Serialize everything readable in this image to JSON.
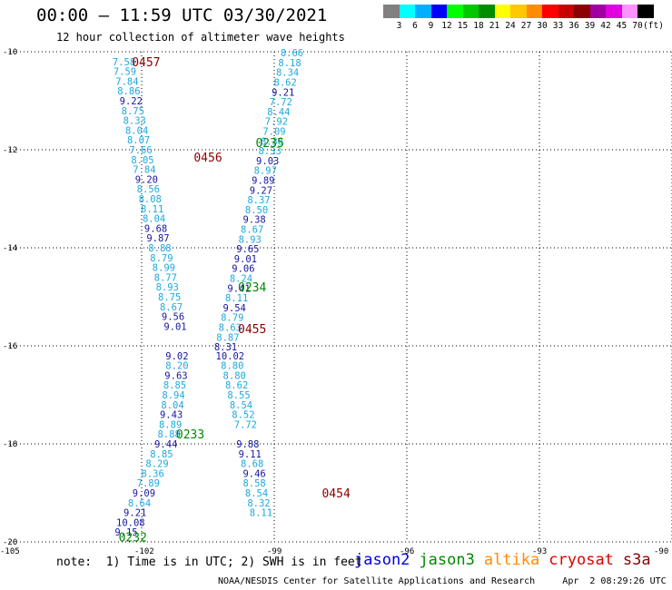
{
  "header": {
    "title": "00:00 – 11:59 UTC 03/30/2021",
    "subtitle": "12 hour collection of altimeter wave heights"
  },
  "colorbar": {
    "colors": [
      "#808080",
      "#00ffff",
      "#00b0ff",
      "#0000ff",
      "#00ff00",
      "#00c800",
      "#008c00",
      "#ffff00",
      "#ffc800",
      "#ff8c00",
      "#ff0000",
      "#c80000",
      "#8c0000",
      "#a000a0",
      "#e000e0",
      "#ff90ff",
      "#000000"
    ],
    "labels": [
      "3",
      "6",
      "9",
      "12",
      "15",
      "18",
      "21",
      "24",
      "27",
      "30",
      "33",
      "36",
      "39",
      "42",
      "45",
      "70",
      "(ft)"
    ]
  },
  "footer": {
    "note": "note:  1) Time is in UTC; 2) SWH is in feet",
    "credit": "NOAA/NESDIS Center for Satellite Applications and Research     Apr  2 08:29:26 UTC 2021"
  },
  "legend": {
    "items": [
      {
        "name": "jason2",
        "color": "#0000dd"
      },
      {
        "name": "jason3",
        "color": "#008800"
      },
      {
        "name": "altika",
        "color": "#ff8c00"
      },
      {
        "name": "cryosat",
        "color": "#dd0000"
      },
      {
        "name": "s3a",
        "color": "#880000"
      }
    ]
  },
  "chart_data": {
    "type": "scatter",
    "title": "12 hour collection of altimeter wave heights",
    "xlim": [
      -105,
      -90
    ],
    "ylim": [
      -20,
      -10
    ],
    "x_ticks": [
      -105,
      -102,
      -99,
      -96,
      -93,
      -90
    ],
    "x_tick_labels": [
      "-105",
      "-102",
      "-99",
      "-96",
      "-93",
      "-90"
    ],
    "y_ticks": [
      -10,
      -12,
      -14,
      -16,
      -18,
      -20
    ],
    "y_tick_labels": [
      "-10",
      "-12",
      "-14",
      "-16",
      "-18",
      "-20"
    ],
    "grid": true,
    "label_colors": {
      "light": "#1ea8e0",
      "dark": "#1616a0"
    },
    "pass_colors": {
      "jason3": "#008800",
      "s3a": "#880000"
    },
    "pass_labels": [
      {
        "label": "0457",
        "satellite": "s3a",
        "x": -101.9,
        "y": -10.2
      },
      {
        "label": "0456",
        "satellite": "s3a",
        "x": -100.5,
        "y": -12.15
      },
      {
        "label": "0455",
        "satellite": "s3a",
        "x": -99.5,
        "y": -15.65
      },
      {
        "label": "0454",
        "satellite": "s3a",
        "x": -97.6,
        "y": -19.0
      },
      {
        "label": "0235",
        "satellite": "jason3",
        "x": -99.1,
        "y": -11.85
      },
      {
        "label": "0234",
        "satellite": "jason3",
        "x": -99.5,
        "y": -14.8
      },
      {
        "label": "0233",
        "satellite": "jason3",
        "x": -100.9,
        "y": -17.8
      },
      {
        "label": "0232",
        "satellite": "jason3",
        "x": -102.2,
        "y": -19.9
      }
    ],
    "series": [
      {
        "name": "s3a",
        "points": [
          {
            "x": -102.4,
            "y": -10.2,
            "v": "7.58",
            "c": "light"
          },
          {
            "x": -102.38,
            "y": -10.4,
            "v": "7.59",
            "c": "light"
          },
          {
            "x": -102.33,
            "y": -10.6,
            "v": "7.84",
            "c": "light"
          },
          {
            "x": -102.29,
            "y": -10.8,
            "v": "8.86",
            "c": "light"
          },
          {
            "x": -102.24,
            "y": -11.0,
            "v": "9.22",
            "c": "dark"
          },
          {
            "x": -102.2,
            "y": -11.2,
            "v": "8.75",
            "c": "light"
          },
          {
            "x": -102.16,
            "y": -11.4,
            "v": "8.33",
            "c": "light"
          },
          {
            "x": -102.11,
            "y": -11.6,
            "v": "8.04",
            "c": "light"
          },
          {
            "x": -102.07,
            "y": -11.8,
            "v": "8.07",
            "c": "light"
          },
          {
            "x": -102.02,
            "y": -12.0,
            "v": "7.66",
            "c": "light"
          },
          {
            "x": -101.98,
            "y": -12.2,
            "v": "8.05",
            "c": "light"
          },
          {
            "x": -101.94,
            "y": -12.4,
            "v": "7.84",
            "c": "light"
          },
          {
            "x": -101.89,
            "y": -12.6,
            "v": "9.20",
            "c": "dark"
          },
          {
            "x": -101.85,
            "y": -12.8,
            "v": "8.56",
            "c": "light"
          },
          {
            "x": -101.81,
            "y": -13.0,
            "v": "8.08",
            "c": "light"
          },
          {
            "x": -101.76,
            "y": -13.2,
            "v": "8.11",
            "c": "light"
          },
          {
            "x": -101.72,
            "y": -13.4,
            "v": "8.04",
            "c": "light"
          },
          {
            "x": -101.68,
            "y": -13.6,
            "v": "9.68",
            "c": "dark"
          },
          {
            "x": -101.63,
            "y": -13.8,
            "v": "9.87",
            "c": "dark"
          },
          {
            "x": -101.59,
            "y": -14.0,
            "v": "8.88",
            "c": "light"
          },
          {
            "x": -101.55,
            "y": -14.2,
            "v": "8.79",
            "c": "light"
          },
          {
            "x": -101.5,
            "y": -14.4,
            "v": "8.99",
            "c": "light"
          },
          {
            "x": -101.46,
            "y": -14.6,
            "v": "8.77",
            "c": "light"
          },
          {
            "x": -101.42,
            "y": -14.8,
            "v": "8.93",
            "c": "light"
          },
          {
            "x": -101.37,
            "y": -15.0,
            "v": "8.75",
            "c": "light"
          },
          {
            "x": -101.33,
            "y": -15.2,
            "v": "8.67",
            "c": "light"
          },
          {
            "x": -101.29,
            "y": -15.4,
            "v": "9.56",
            "c": "dark"
          },
          {
            "x": -101.24,
            "y": -15.6,
            "v": "9.01",
            "c": "dark"
          }
        ]
      },
      {
        "name": "jason3",
        "points": [
          {
            "x": -98.6,
            "y": -10.02,
            "v": "8.66",
            "c": "light"
          },
          {
            "x": -98.65,
            "y": -10.22,
            "v": "8.18",
            "c": "light"
          },
          {
            "x": -98.7,
            "y": -10.42,
            "v": "8.34",
            "c": "light"
          },
          {
            "x": -98.75,
            "y": -10.62,
            "v": "8.62",
            "c": "light"
          },
          {
            "x": -98.8,
            "y": -10.82,
            "v": "9.21",
            "c": "dark"
          },
          {
            "x": -98.85,
            "y": -11.02,
            "v": "7.72",
            "c": "light"
          },
          {
            "x": -98.9,
            "y": -11.22,
            "v": "8.44",
            "c": "light"
          },
          {
            "x": -98.95,
            "y": -11.42,
            "v": "7.92",
            "c": "light"
          },
          {
            "x": -99.0,
            "y": -11.62,
            "v": "7.09",
            "c": "light"
          },
          {
            "x": -99.05,
            "y": -11.82,
            "v": "8.38",
            "c": "light"
          },
          {
            "x": -99.1,
            "y": -12.02,
            "v": "8.33",
            "c": "light"
          },
          {
            "x": -99.15,
            "y": -12.22,
            "v": "9.03",
            "c": "dark"
          },
          {
            "x": -99.2,
            "y": -12.42,
            "v": "8.97",
            "c": "light"
          },
          {
            "x": -99.25,
            "y": -12.62,
            "v": "9.89",
            "c": "dark"
          },
          {
            "x": -99.3,
            "y": -12.82,
            "v": "9.27",
            "c": "dark"
          },
          {
            "x": -99.35,
            "y": -13.02,
            "v": "8.37",
            "c": "light"
          },
          {
            "x": -99.4,
            "y": -13.22,
            "v": "8.50",
            "c": "light"
          },
          {
            "x": -99.45,
            "y": -13.42,
            "v": "9.38",
            "c": "dark"
          },
          {
            "x": -99.5,
            "y": -13.62,
            "v": "8.67",
            "c": "light"
          },
          {
            "x": -99.55,
            "y": -13.82,
            "v": "8.93",
            "c": "light"
          },
          {
            "x": -99.6,
            "y": -14.02,
            "v": "9.65",
            "c": "dark"
          },
          {
            "x": -99.65,
            "y": -14.22,
            "v": "9.01",
            "c": "dark"
          },
          {
            "x": -99.7,
            "y": -14.42,
            "v": "9.06",
            "c": "dark"
          },
          {
            "x": -99.75,
            "y": -14.62,
            "v": "8.24",
            "c": "light"
          },
          {
            "x": -99.8,
            "y": -14.82,
            "v": "9.41",
            "c": "dark"
          },
          {
            "x": -99.85,
            "y": -15.02,
            "v": "8.11",
            "c": "light"
          },
          {
            "x": -99.9,
            "y": -15.22,
            "v": "9.54",
            "c": "dark"
          },
          {
            "x": -99.95,
            "y": -15.42,
            "v": "8.79",
            "c": "light"
          },
          {
            "x": -100.0,
            "y": -15.62,
            "v": "8.63",
            "c": "light"
          },
          {
            "x": -100.05,
            "y": -15.82,
            "v": "8.87",
            "c": "light"
          },
          {
            "x": -100.1,
            "y": -16.02,
            "v": "8.31",
            "c": "dark"
          }
        ]
      },
      {
        "name": "s3a",
        "points": [
          {
            "x": -101.2,
            "y": -16.2,
            "v": "9.02",
            "c": "dark"
          },
          {
            "x": -101.2,
            "y": -16.4,
            "v": "8.20",
            "c": "light"
          },
          {
            "x": -101.22,
            "y": -16.6,
            "v": "9.63",
            "c": "dark"
          },
          {
            "x": -101.25,
            "y": -16.8,
            "v": "8.85",
            "c": "light"
          },
          {
            "x": -101.28,
            "y": -17.0,
            "v": "8.94",
            "c": "light"
          },
          {
            "x": -101.3,
            "y": -17.2,
            "v": "8.04",
            "c": "light"
          },
          {
            "x": -101.33,
            "y": -17.4,
            "v": "9.43",
            "c": "dark"
          },
          {
            "x": -101.35,
            "y": -17.6,
            "v": "8.89",
            "c": "light"
          },
          {
            "x": -101.38,
            "y": -17.8,
            "v": "8.88",
            "c": "light"
          },
          {
            "x": -101.45,
            "y": -18.0,
            "v": "9.44",
            "c": "dark"
          },
          {
            "x": -101.55,
            "y": -18.2,
            "v": "8.85",
            "c": "light"
          },
          {
            "x": -101.65,
            "y": -18.4,
            "v": "8.29",
            "c": "light"
          },
          {
            "x": -101.75,
            "y": -18.6,
            "v": "8.36",
            "c": "light"
          },
          {
            "x": -101.85,
            "y": -18.8,
            "v": "7.89",
            "c": "light"
          },
          {
            "x": -101.95,
            "y": -19.0,
            "v": "9.09",
            "c": "dark"
          },
          {
            "x": -102.05,
            "y": -19.2,
            "v": "8.64",
            "c": "light"
          },
          {
            "x": -102.15,
            "y": -19.4,
            "v": "9.21",
            "c": "dark"
          },
          {
            "x": -102.25,
            "y": -19.6,
            "v": "10.08",
            "c": "dark"
          },
          {
            "x": -102.35,
            "y": -19.8,
            "v": "9.15",
            "c": "dark"
          }
        ]
      },
      {
        "name": "jason3",
        "points": [
          {
            "x": -100.0,
            "y": -16.2,
            "v": "10.02",
            "c": "dark"
          },
          {
            "x": -99.95,
            "y": -16.4,
            "v": "8.80",
            "c": "light"
          },
          {
            "x": -99.9,
            "y": -16.6,
            "v": "8.80",
            "c": "light"
          },
          {
            "x": -99.85,
            "y": -16.8,
            "v": "8.62",
            "c": "light"
          },
          {
            "x": -99.8,
            "y": -17.0,
            "v": "8.55",
            "c": "light"
          },
          {
            "x": -99.75,
            "y": -17.2,
            "v": "8.54",
            "c": "light"
          },
          {
            "x": -99.7,
            "y": -17.4,
            "v": "8.52",
            "c": "light"
          },
          {
            "x": -99.65,
            "y": -17.6,
            "v": "7.72",
            "c": "light"
          },
          {
            "x": -99.6,
            "y": -18.0,
            "v": "9.88",
            "c": "dark"
          },
          {
            "x": -99.55,
            "y": -18.2,
            "v": "9.11",
            "c": "dark"
          },
          {
            "x": -99.5,
            "y": -18.4,
            "v": "8.68",
            "c": "light"
          },
          {
            "x": -99.45,
            "y": -18.6,
            "v": "9.46",
            "c": "dark"
          },
          {
            "x": -99.45,
            "y": -18.8,
            "v": "8.58",
            "c": "light"
          },
          {
            "x": -99.4,
            "y": -19.0,
            "v": "8.54",
            "c": "light"
          },
          {
            "x": -99.35,
            "y": -19.2,
            "v": "8.32",
            "c": "light"
          },
          {
            "x": -99.3,
            "y": -19.4,
            "v": "8.11",
            "c": "light"
          }
        ]
      }
    ]
  }
}
